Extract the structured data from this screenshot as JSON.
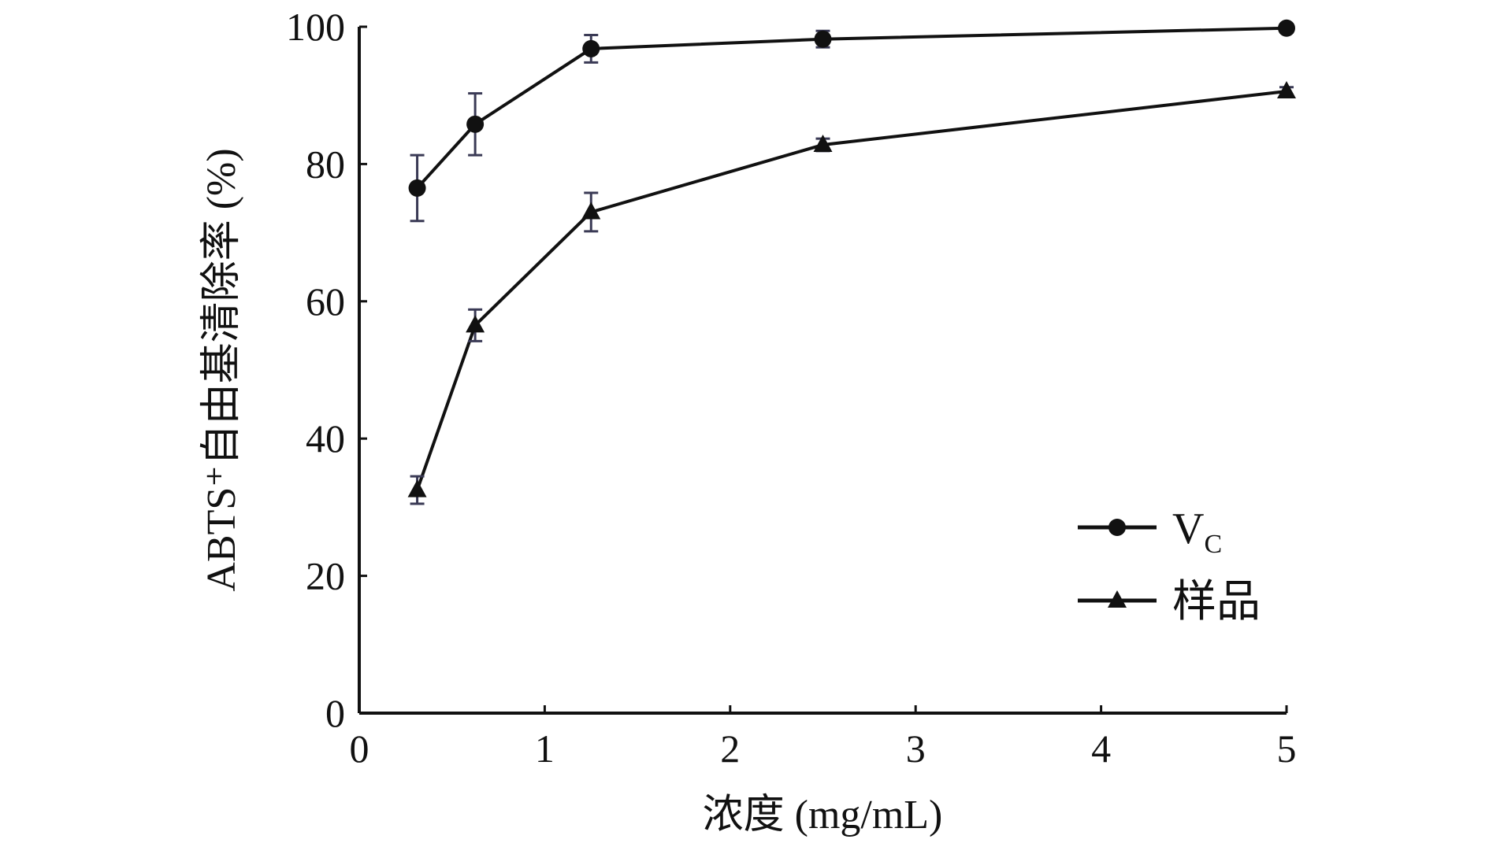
{
  "chart_data": {
    "type": "line",
    "title": "",
    "xlabel": "浓度 (mg/mL)",
    "ylabel": "ABTS⁺自由基清除率 (%)",
    "xlim": [
      0,
      5
    ],
    "ylim": [
      0,
      100
    ],
    "x_ticks": [
      0,
      1,
      2,
      3,
      4,
      5
    ],
    "y_ticks": [
      0,
      20,
      40,
      60,
      80,
      100
    ],
    "grid": false,
    "legend_position": "bottom-right",
    "x": [
      0.3125,
      0.625,
      1.25,
      2.5,
      5
    ],
    "series": [
      {
        "name": "VC",
        "name_main": "V",
        "name_sub": "C",
        "marker": "circle",
        "values": [
          76.5,
          85.8,
          96.8,
          98.2,
          99.8
        ],
        "errors": [
          4.8,
          4.5,
          2.0,
          1.2,
          0.6
        ]
      },
      {
        "name": "样品",
        "marker": "triangle",
        "values": [
          32.5,
          56.5,
          73.0,
          82.8,
          90.6
        ],
        "errors": [
          2.0,
          2.3,
          2.8,
          0.9,
          0.6
        ]
      }
    ],
    "colors": {
      "line": "#111111",
      "error_bar": "#3a3a55"
    }
  }
}
